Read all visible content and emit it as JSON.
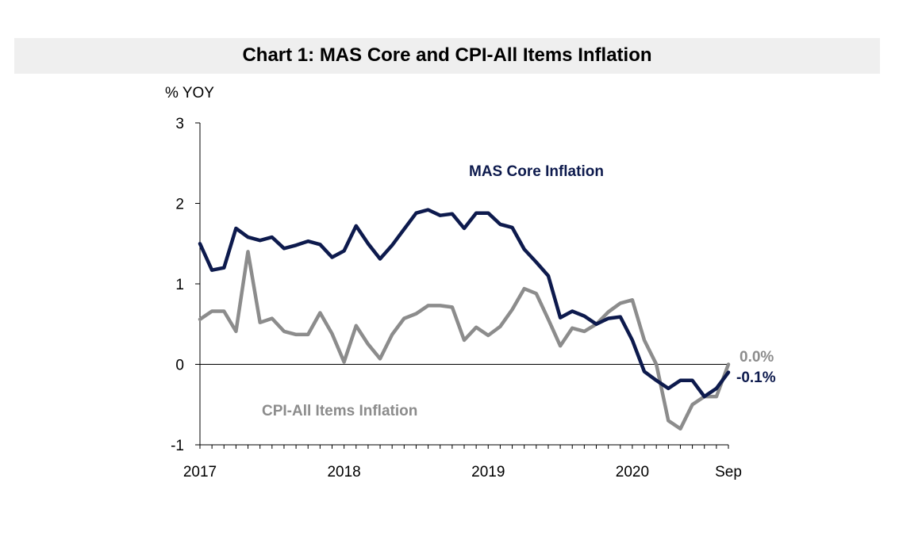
{
  "chart_data": {
    "type": "line",
    "title": "Chart 1: MAS Core and CPI-All Items Inflation",
    "ylabel": "% YOY",
    "ylim": [
      -1,
      3
    ],
    "yticks": [
      "3",
      "2",
      "1",
      "0",
      "-1"
    ],
    "x_tick_labels": [
      "2017",
      "2018",
      "2019",
      "2020",
      "Sep"
    ],
    "x_start": "2017-01",
    "x_end": "2020-09",
    "grid": false,
    "series": [
      {
        "name": "MAS Core Inflation",
        "color": "#0d1a4d",
        "end_label": "-0.1%",
        "values": [
          1.5,
          1.17,
          1.2,
          1.69,
          1.58,
          1.54,
          1.58,
          1.44,
          1.48,
          1.53,
          1.49,
          1.33,
          1.41,
          1.72,
          1.5,
          1.31,
          1.48,
          1.68,
          1.88,
          1.92,
          1.85,
          1.87,
          1.69,
          1.88,
          1.88,
          1.74,
          1.7,
          1.43,
          1.27,
          1.1,
          0.58,
          0.66,
          0.6,
          0.5,
          0.57,
          0.59,
          0.3,
          -0.09,
          -0.2,
          -0.3,
          -0.2,
          -0.2,
          -0.4,
          -0.3,
          -0.1
        ]
      },
      {
        "name": "CPI-All Items Inflation",
        "color": "#8c8c8c",
        "end_label": "0.0%",
        "values": [
          0.56,
          0.66,
          0.66,
          0.41,
          1.4,
          0.52,
          0.57,
          0.41,
          0.37,
          0.37,
          0.64,
          0.38,
          0.03,
          0.48,
          0.25,
          0.07,
          0.37,
          0.57,
          0.63,
          0.73,
          0.73,
          0.71,
          0.3,
          0.46,
          0.36,
          0.47,
          0.68,
          0.94,
          0.88,
          0.56,
          0.23,
          0.45,
          0.41,
          0.5,
          0.65,
          0.76,
          0.8,
          0.3,
          0.0,
          -0.7,
          -0.8,
          -0.5,
          -0.4,
          -0.4,
          0.0
        ]
      }
    ]
  }
}
